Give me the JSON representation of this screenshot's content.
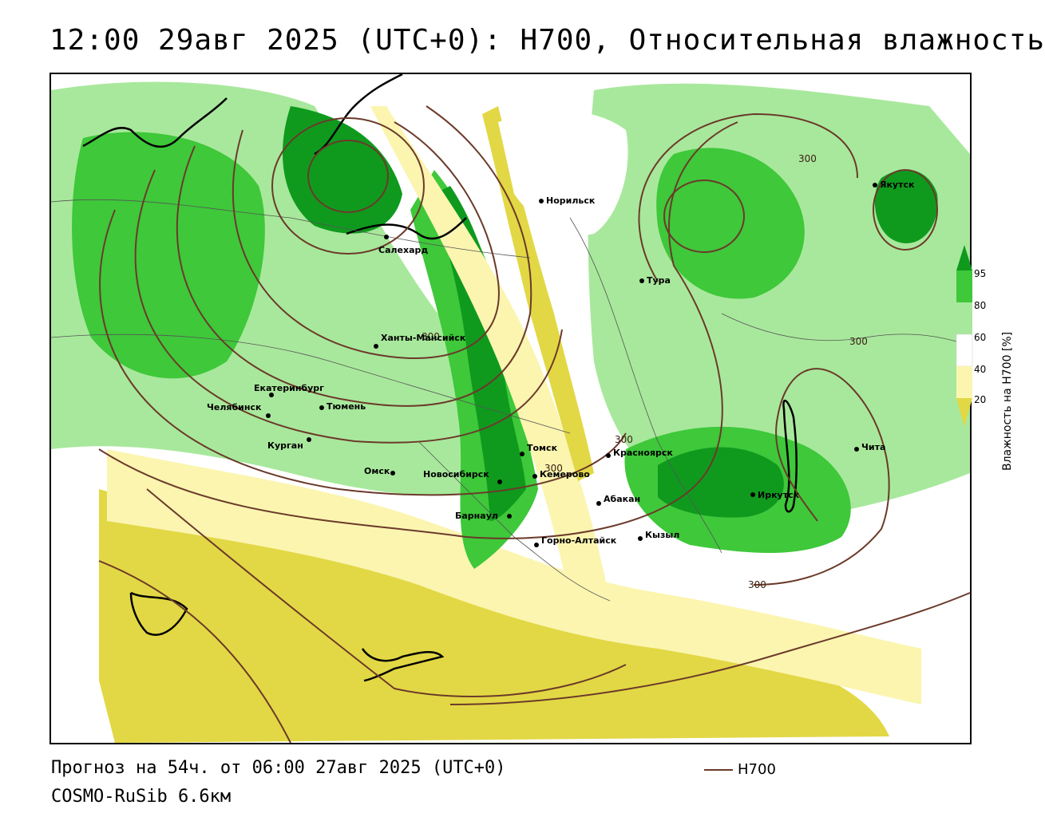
{
  "title": "12:00 29авг 2025 (UTC+0): H700, Относительная влажность",
  "forecast_line": "Прогноз на 54ч. от 06:00 27авг 2025 (UTC+0)",
  "model_line": "COSMO-RuSib 6.6км",
  "legend": {
    "label": "Влажность на H700 [%]",
    "ticks": [
      "95",
      "80",
      "60",
      "40",
      "20"
    ],
    "colors": {
      "dark_green": "#0f9a1e",
      "green": "#3ec83a",
      "light_green": "#a8e89c",
      "white": "#ffffff",
      "light_yellow": "#fbf5b0",
      "yellow": "#e2d845",
      "dark_yellow": "#c8c020"
    }
  },
  "line_legend": {
    "label": "H700",
    "color": "#6b3a2a"
  },
  "contour_labels": [
    "300",
    "300",
    "300",
    "300",
    "300",
    "300"
  ],
  "cities": [
    "Норильск",
    "Салехард",
    "Тура",
    "Якутск",
    "Ханты-Мансийск",
    "Екатеринбург",
    "Тюмень",
    "Челябинск",
    "Курган",
    "Омск",
    "Новосибирск",
    "Томск",
    "Кемерово",
    "Красноярск",
    "Барнаул",
    "Абакан",
    "Горно-Алтайск",
    "Кызыл",
    "Иркутск",
    "Чита"
  ]
}
